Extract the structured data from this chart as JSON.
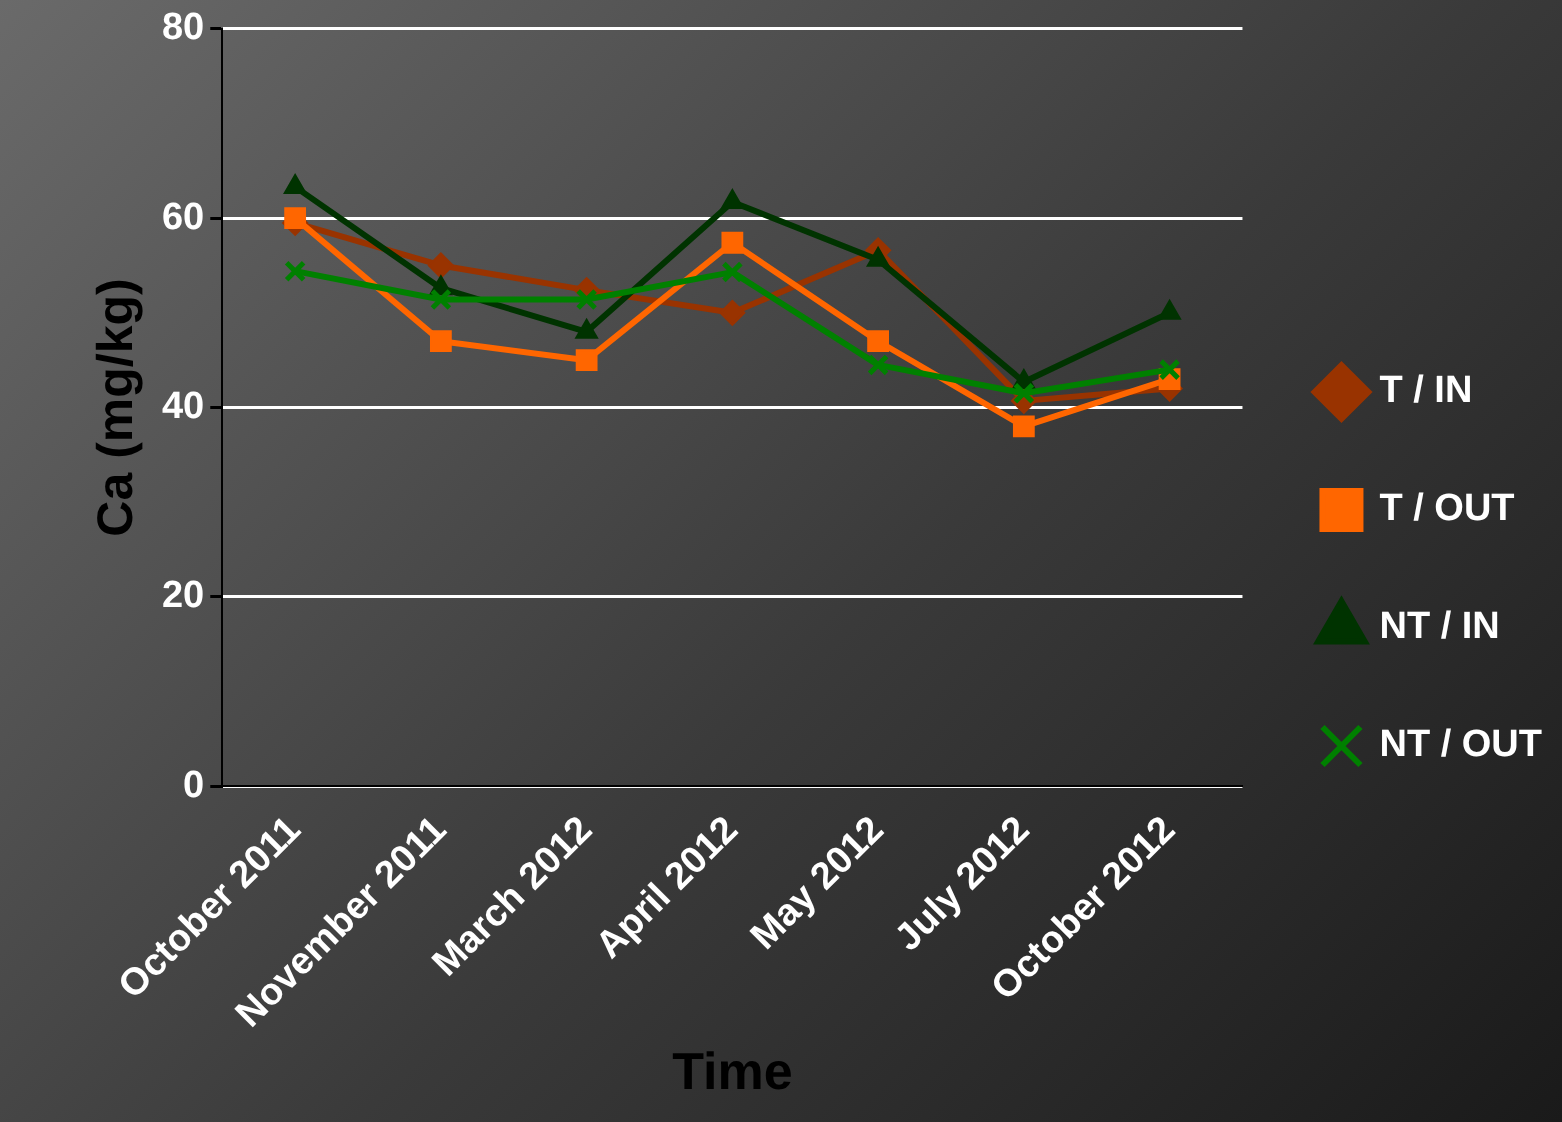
{
  "chart_data": {
    "type": "line",
    "xlabel": "Time",
    "ylabel": "Ca (mg/kg)",
    "categories": [
      "October 2011",
      "November 2011",
      "March 2012",
      "April 2012",
      "May 2012",
      "July 2012",
      "October 2012"
    ],
    "series": [
      {
        "name": "T / IN",
        "color": "#993300",
        "marker": "diamond",
        "values": [
          59.5,
          55,
          52.4,
          50,
          56.6,
          40.7,
          42
        ]
      },
      {
        "name": "T / OUT",
        "color": "#ff6600",
        "marker": "square",
        "values": [
          60,
          47,
          45,
          57.4,
          47,
          38,
          43
        ]
      },
      {
        "name": "NT / IN",
        "color": "#003300",
        "marker": "triangle",
        "values": [
          63.3,
          52.6,
          48,
          61.7,
          55.6,
          42.7,
          50
        ]
      },
      {
        "name": "NT / OUT",
        "color": "#008000",
        "marker": "cross",
        "values": [
          54.4,
          51.4,
          51.4,
          54.3,
          44.5,
          41.5,
          44
        ]
      }
    ],
    "ylim": [
      0,
      80
    ],
    "yticks": [
      0,
      20,
      40,
      60,
      80
    ],
    "grid": "y",
    "legend": "right"
  }
}
